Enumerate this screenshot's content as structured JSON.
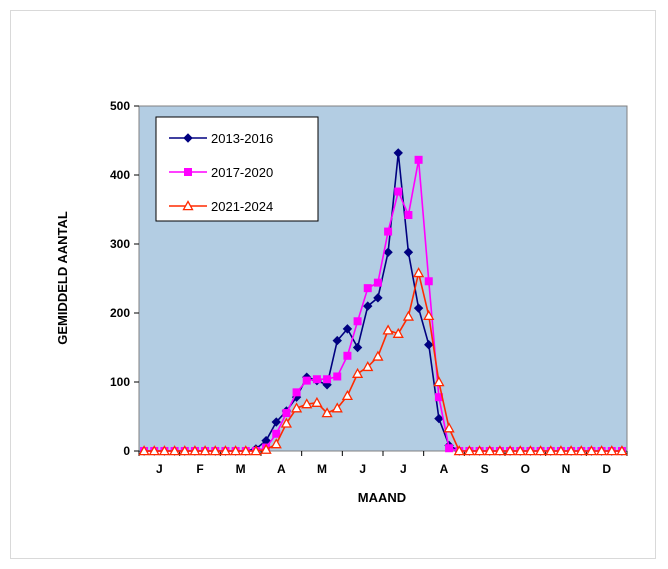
{
  "chart_data": {
    "type": "line",
    "xlabel": "MAAND",
    "ylabel": "GEMIDDELD AANTAL",
    "ylim": [
      0,
      500
    ],
    "yticks": [
      "0",
      "100",
      "200",
      "300",
      "400",
      "500"
    ],
    "month_labels": [
      "J",
      "F",
      "M",
      "A",
      "M",
      "J",
      "J",
      "A",
      "S",
      "O",
      "N",
      "D"
    ],
    "points_per_month": 4,
    "x": [
      1,
      2,
      3,
      4,
      5,
      6,
      7,
      8,
      9,
      10,
      11,
      12,
      13,
      14,
      15,
      16,
      17,
      18,
      19,
      20,
      21,
      22,
      23,
      24,
      25,
      26,
      27,
      28,
      29,
      30,
      31,
      32,
      33,
      34,
      35,
      36,
      37,
      38,
      39,
      40,
      41,
      42,
      43,
      44,
      45,
      46,
      47,
      48
    ],
    "plot_background": "#b3cde3",
    "legend_position": "top-left",
    "series": [
      {
        "name": "2013-2016",
        "color": "#000080",
        "marker": "diamond",
        "values": [
          0,
          0,
          0,
          0,
          0,
          0,
          0,
          0,
          0,
          0,
          0,
          3,
          15,
          42,
          58,
          78,
          107,
          102,
          96,
          160,
          177,
          150,
          210,
          222,
          288,
          432,
          288,
          207,
          154,
          47,
          8,
          0,
          0,
          0,
          0,
          0,
          0,
          0,
          0,
          0,
          0,
          0,
          0,
          0,
          0,
          0,
          0,
          0
        ]
      },
      {
        "name": "2017-2020",
        "color": "#ff00ff",
        "marker": "square",
        "values": [
          0,
          0,
          0,
          0,
          0,
          0,
          0,
          0,
          0,
          0,
          0,
          0,
          5,
          25,
          55,
          85,
          102,
          104,
          104,
          108,
          138,
          188,
          236,
          244,
          318,
          376,
          342,
          422,
          246,
          78,
          4,
          0,
          0,
          0,
          0,
          0,
          0,
          0,
          0,
          0,
          0,
          0,
          0,
          0,
          0,
          0,
          0,
          0
        ]
      },
      {
        "name": "2021-2024",
        "color": "#ff2a00",
        "marker": "triangle-open",
        "values": [
          0,
          0,
          0,
          0,
          0,
          0,
          0,
          0,
          0,
          0,
          0,
          0,
          2,
          10,
          40,
          62,
          68,
          70,
          55,
          62,
          80,
          112,
          122,
          137,
          175,
          170,
          195,
          258,
          196,
          100,
          33,
          0,
          0,
          0,
          0,
          0,
          0,
          0,
          0,
          0,
          0,
          0,
          0,
          0,
          0,
          0,
          0,
          0
        ]
      }
    ]
  }
}
